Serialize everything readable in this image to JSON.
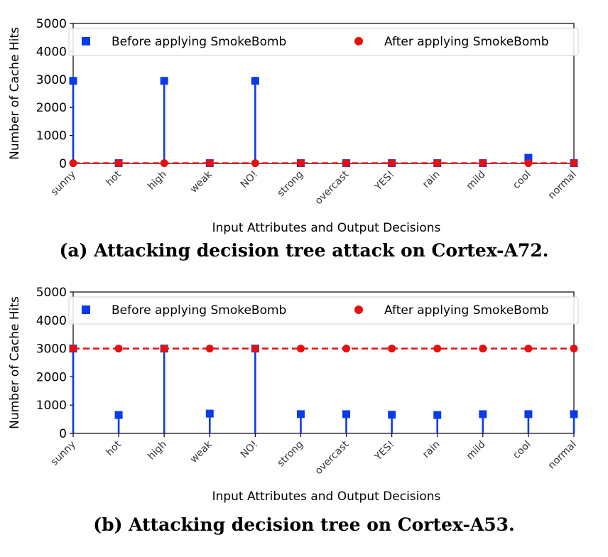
{
  "chart_data": [
    {
      "type": "stem",
      "caption": "(a) Attacking decision tree attack on Cortex-A72.",
      "xlabel": "Input Attributes and Output Decisions",
      "ylabel": "Number of Cache Hits",
      "ylim": [
        0,
        5000
      ],
      "yticks": [
        0,
        1000,
        2000,
        3000,
        4000,
        5000
      ],
      "categories": [
        "sunny",
        "hot",
        "high",
        "weak",
        "NO!",
        "strong",
        "overcast",
        "YES!",
        "rain",
        "mild",
        "cool",
        "normal"
      ],
      "legend_position": "top",
      "series": [
        {
          "name": "Before applying SmokeBomb",
          "marker": "square",
          "color": "#0a3be6",
          "values": [
            2950,
            10,
            2950,
            10,
            2950,
            10,
            10,
            10,
            10,
            10,
            200,
            10
          ]
        },
        {
          "name": "After applying SmokeBomb",
          "marker": "circle",
          "color": "#e61010",
          "values": [
            10,
            10,
            10,
            10,
            10,
            10,
            10,
            10,
            10,
            10,
            10,
            10
          ]
        }
      ]
    },
    {
      "type": "stem",
      "caption": "(b) Attacking decision tree on Cortex-A53.",
      "xlabel": "Input Attributes and Output Decisions",
      "ylabel": "Number of Cache Hits",
      "ylim": [
        0,
        5000
      ],
      "yticks": [
        0,
        1000,
        2000,
        3000,
        4000,
        5000
      ],
      "categories": [
        "sunny",
        "hot",
        "high",
        "weak",
        "NO!",
        "strong",
        "overcast",
        "YES!",
        "rain",
        "mild",
        "cool",
        "normal"
      ],
      "legend_position": "top",
      "series": [
        {
          "name": "Before applying SmokeBomb",
          "marker": "square",
          "color": "#0a3be6",
          "values": [
            3000,
            650,
            3000,
            700,
            3000,
            680,
            680,
            660,
            650,
            680,
            680,
            680
          ]
        },
        {
          "name": "After applying SmokeBomb",
          "marker": "circle",
          "color": "#e61010",
          "values": [
            3000,
            3000,
            3000,
            3000,
            3000,
            3000,
            3000,
            3000,
            3000,
            3000,
            3000,
            3000
          ]
        }
      ]
    }
  ]
}
